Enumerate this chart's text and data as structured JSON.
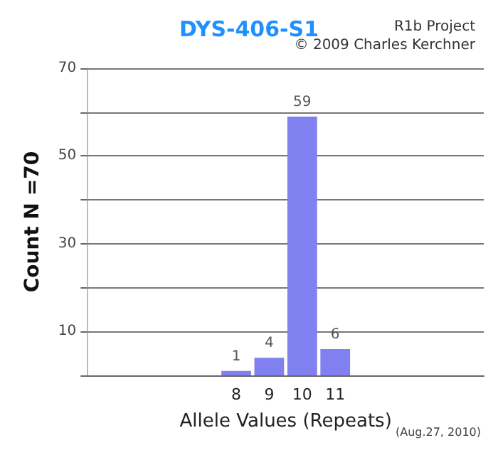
{
  "chart_data": {
    "type": "bar",
    "title": "DYS-406-S1",
    "xlabel": "Allele Values (Repeats)",
    "ylabel": "Count N =70",
    "annotations": [
      "R1b Project",
      "© 2009 Charles Kerchner",
      "(Aug.27, 2010)"
    ],
    "categories": [
      null,
      null,
      null,
      null,
      "8",
      "9",
      "10",
      "11",
      null,
      null,
      null,
      null
    ],
    "values": [
      null,
      null,
      null,
      null,
      1,
      4,
      59,
      6,
      null,
      null,
      null,
      null
    ],
    "color": "#8080f0",
    "data_labels": true,
    "ylim": [
      0,
      70
    ],
    "yticks": [
      {
        "value": 0,
        "label": null
      },
      10,
      {
        "value": 20,
        "label": null
      },
      30,
      {
        "value": 40,
        "label": null
      },
      50,
      {
        "value": 60,
        "label": null
      },
      70
    ],
    "grid": "y"
  }
}
